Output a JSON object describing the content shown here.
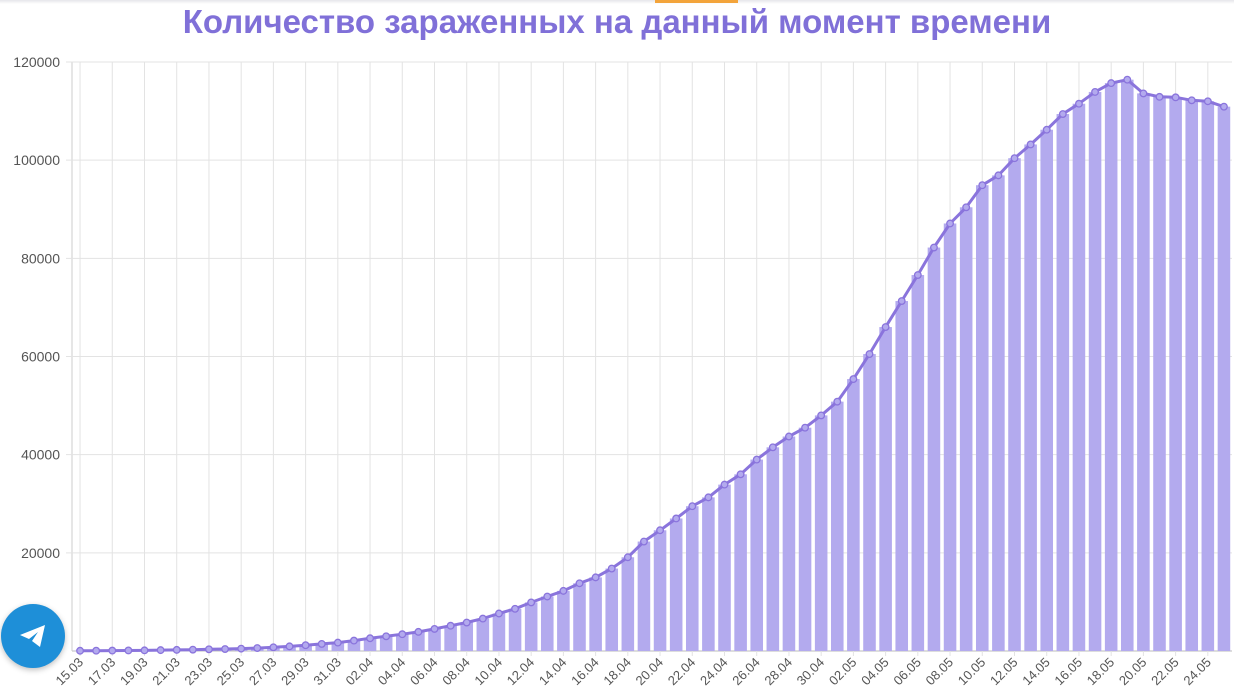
{
  "title": "Количество зараженных на данный момент времени",
  "colors": {
    "title": "#8070d8",
    "bar": "#b3aaee",
    "line": "#8a74dc",
    "telegram": "#1e8fd8",
    "tab": "#f3a43b"
  },
  "telegram_button": {
    "icon": "telegram-paper-plane-icon"
  },
  "chart_data": {
    "type": "bar",
    "title": "Количество зараженных на данный момент времени",
    "xlabel": "",
    "ylabel": "",
    "ylim": [
      0,
      120000
    ],
    "yticks": [
      20000,
      40000,
      60000,
      80000,
      100000,
      120000
    ],
    "x_tick_labels": [
      "15.03",
      "17.03",
      "19.03",
      "21.03",
      "23.03",
      "25.03",
      "27.03",
      "29.03",
      "31.03",
      "02.04",
      "04.04",
      "06.04",
      "08.04",
      "10.04",
      "12.04",
      "14.04",
      "16.04",
      "18.04",
      "20.04",
      "22.04",
      "24.04",
      "26.04",
      "28.04",
      "30.04",
      "02.05",
      "04.05",
      "06.05",
      "08.05",
      "10.05",
      "12.05",
      "14.05",
      "16.05",
      "18.05",
      "20.05",
      "22.05",
      "24.05"
    ],
    "grid": true,
    "overlay_line": true,
    "categories": [
      "15.03",
      "16.03",
      "17.03",
      "18.03",
      "19.03",
      "20.03",
      "21.03",
      "22.03",
      "23.03",
      "24.03",
      "25.03",
      "26.03",
      "27.03",
      "28.03",
      "29.03",
      "30.03",
      "31.03",
      "01.04",
      "02.04",
      "03.04",
      "04.04",
      "05.04",
      "06.04",
      "07.04",
      "08.04",
      "09.04",
      "10.04",
      "11.04",
      "12.04",
      "13.04",
      "14.04",
      "15.04",
      "16.04",
      "17.04",
      "18.04",
      "19.04",
      "20.04",
      "21.04",
      "22.04",
      "23.04",
      "24.04",
      "25.04",
      "26.04",
      "27.04",
      "28.04",
      "29.04",
      "30.04",
      "01.05",
      "02.05",
      "03.05",
      "04.05",
      "05.05",
      "06.05",
      "07.05",
      "08.05",
      "09.05",
      "10.05",
      "11.05",
      "12.05",
      "13.05",
      "14.05",
      "15.05",
      "16.05",
      "17.05",
      "18.05",
      "19.05",
      "20.05",
      "21.05",
      "22.05",
      "23.05",
      "24.05",
      "25.05"
    ],
    "values": [
      53,
      63,
      83,
      111,
      131,
      178,
      229,
      274,
      347,
      400,
      480,
      600,
      760,
      940,
      1180,
      1440,
      1710,
      2120,
      2600,
      3000,
      3420,
      3900,
      4500,
      5150,
      5800,
      6600,
      7640,
      8600,
      9900,
      11100,
      12250,
      13800,
      15000,
      16800,
      19100,
      22300,
      24600,
      27000,
      29500,
      31300,
      33900,
      36000,
      39000,
      41500,
      43700,
      45500,
      48000,
      50800,
      55400,
      60500,
      66000,
      71300,
      76600,
      82200,
      87100,
      90400,
      94900,
      96900,
      100400,
      103200,
      106200,
      109400,
      111500,
      113900,
      115700,
      116400,
      113600,
      112900,
      112800,
      112200,
      112000,
      110900
    ]
  }
}
